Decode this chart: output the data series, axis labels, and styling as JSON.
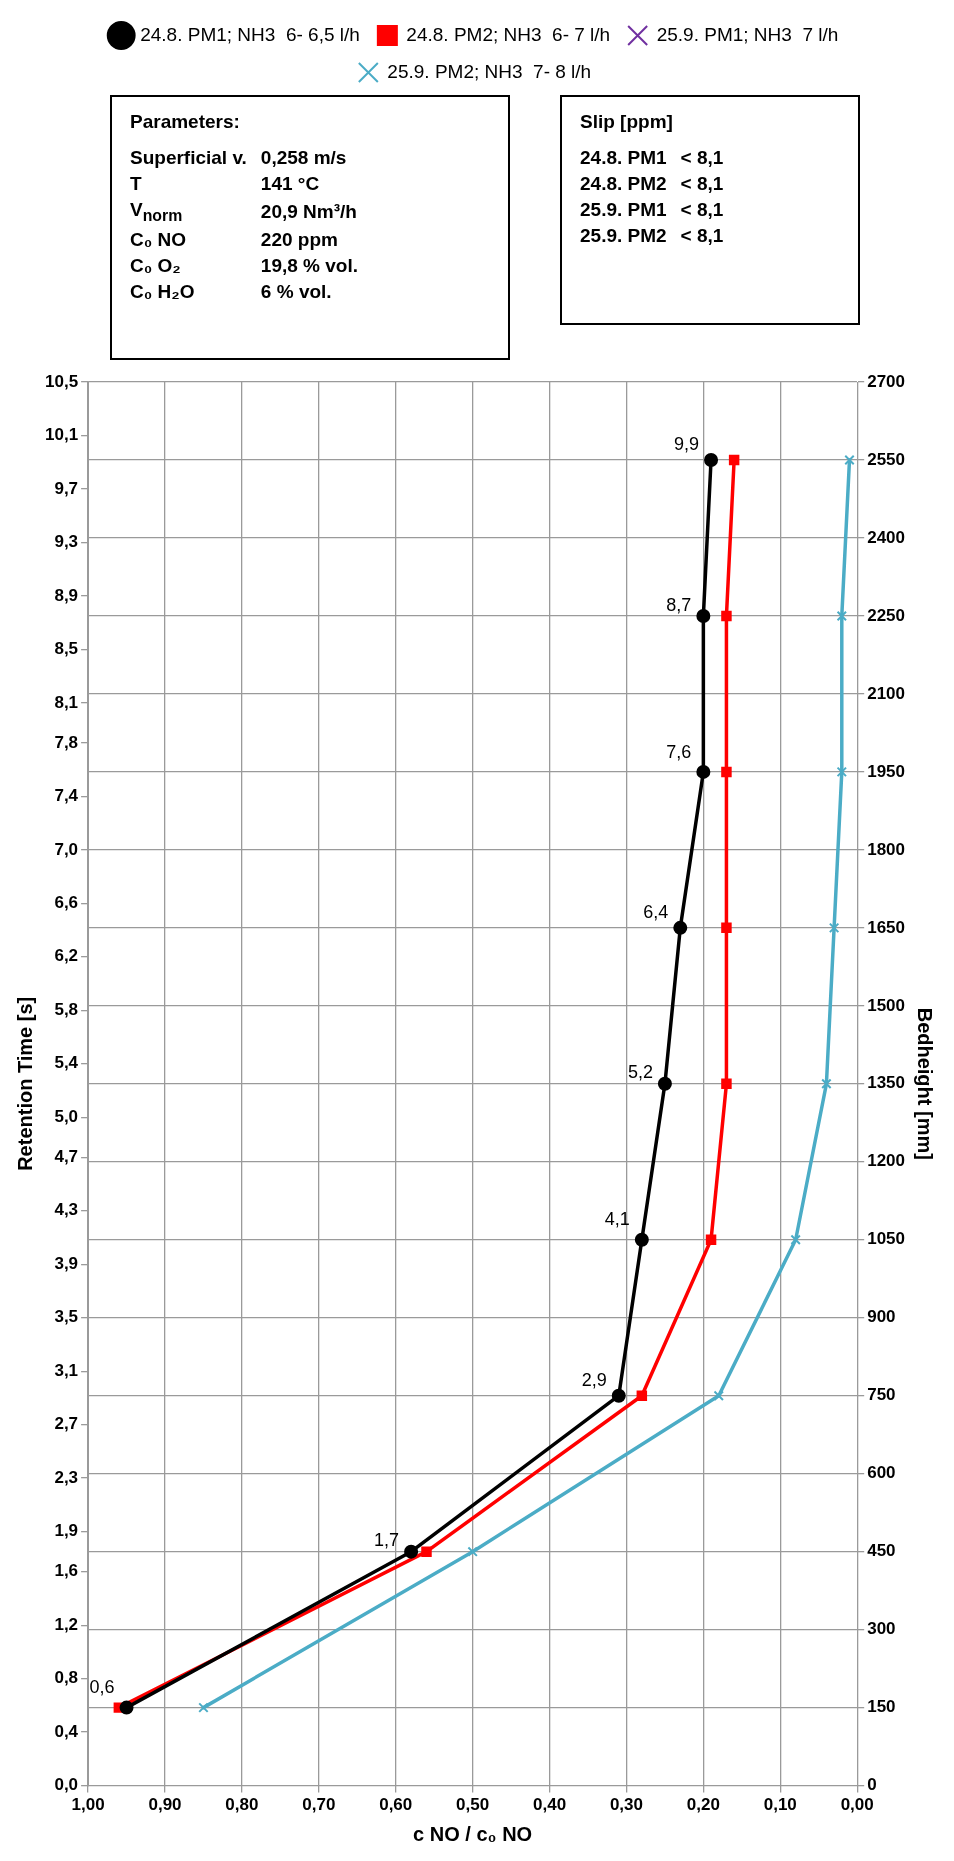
{
  "chart_data": {
    "type": "line",
    "ylabel": "Retention Time [s]",
    "y2label": "Bedheight [mm]",
    "xlabel": "c NO / c₀ NO",
    "series": [
      {
        "name": "24.8. PM1; NH3  6- 6,5 l/h",
        "color": "#000000",
        "marker": "circle",
        "axis": "y2",
        "x": [
          0.95,
          0.58,
          0.31,
          0.28,
          0.25,
          0.23,
          0.2,
          0.2,
          0.19
        ],
        "values": [
          150,
          450,
          750,
          1050,
          1350,
          1650,
          1950,
          2250,
          2550
        ]
      },
      {
        "name": "24.8. PM2; NH3  6- 7 l/h",
        "color": "#ff0000",
        "marker": "square",
        "axis": "y2",
        "x": [
          0.96,
          0.56,
          0.28,
          0.19,
          0.17,
          0.17,
          0.17,
          0.17,
          0.16
        ],
        "values": [
          150,
          450,
          750,
          1050,
          1350,
          1650,
          1950,
          2250,
          2550
        ]
      },
      {
        "name": "25.9. PM1; NH3  7 l/h",
        "color": "#7030a0",
        "marker": "cross",
        "axis": "y2",
        "x": [
          null,
          null,
          null,
          null,
          null,
          null,
          null,
          null,
          null
        ],
        "values": [
          null,
          null,
          null,
          null,
          null,
          null,
          null,
          null,
          null
        ]
      },
      {
        "name": "25.9. PM2; NH3  7- 8 l/h",
        "color": "#4bacc6",
        "marker": "cross",
        "axis": "y2",
        "x": [
          0.85,
          0.5,
          0.18,
          0.08,
          0.04,
          0.03,
          0.02,
          0.02,
          0.01
        ],
        "values": [
          150,
          450,
          750,
          1050,
          1350,
          1650,
          1950,
          2250,
          2550
        ]
      }
    ],
    "xlim": [
      1,
      0
    ],
    "xticks": [
      {
        "value": 1,
        "label": "1,00"
      },
      {
        "value": 0.9,
        "label": "0,90"
      },
      {
        "value": 0.8,
        "label": "0,80"
      },
      {
        "value": 0.7,
        "label": "0,70"
      },
      {
        "value": 0.6,
        "label": "0,60"
      },
      {
        "value": 0.5,
        "label": "0,50"
      },
      {
        "value": 0.4,
        "label": "0,40"
      },
      {
        "value": 0.3,
        "label": "0,30"
      },
      {
        "value": 0.2,
        "label": "0,20"
      },
      {
        "value": 0.1,
        "label": "0,10"
      },
      {
        "value": 0,
        "label": "0,00"
      }
    ],
    "y2lim": [
      0,
      2700
    ],
    "y2ticks": [
      0,
      150,
      300,
      450,
      600,
      750,
      900,
      1050,
      1200,
      1350,
      1500,
      1650,
      1800,
      1950,
      2100,
      2250,
      2400,
      2550,
      2700
    ],
    "ylim": [
      0,
      10.5
    ],
    "yticks": [
      {
        "value": 0,
        "label": "0,0"
      },
      {
        "value": 0.4,
        "label": "0,4"
      },
      {
        "value": 0.8,
        "label": "0,8"
      },
      {
        "value": 1.2,
        "label": "1,2"
      },
      {
        "value": 1.6,
        "label": "1,6"
      },
      {
        "value": 1.9,
        "label": "1,9"
      },
      {
        "value": 2.3,
        "label": "2,3"
      },
      {
        "value": 2.7,
        "label": "2,7"
      },
      {
        "value": 3.1,
        "label": "3,1"
      },
      {
        "value": 3.5,
        "label": "3,5"
      },
      {
        "value": 3.9,
        "label": "3,9"
      },
      {
        "value": 4.3,
        "label": "4,3"
      },
      {
        "value": 4.7,
        "label": "4,7"
      },
      {
        "value": 5,
        "label": "5,0"
      },
      {
        "value": 5.4,
        "label": "5,4"
      },
      {
        "value": 5.8,
        "label": "5,8"
      },
      {
        "value": 6.2,
        "label": "6,2"
      },
      {
        "value": 6.6,
        "label": "6,6"
      },
      {
        "value": 7,
        "label": "7,0"
      },
      {
        "value": 7.4,
        "label": "7,4"
      },
      {
        "value": 7.8,
        "label": "7,8"
      },
      {
        "value": 8.1,
        "label": "8,1"
      },
      {
        "value": 8.5,
        "label": "8,5"
      },
      {
        "value": 8.9,
        "label": "8,9"
      },
      {
        "value": 9.3,
        "label": "9,3"
      },
      {
        "value": 9.7,
        "label": "9,7"
      },
      {
        "value": 10.1,
        "label": "10,1"
      },
      {
        "value": 10.5,
        "label": "10,5"
      }
    ],
    "grid": true,
    "legend": "top",
    "annotations": [
      {
        "text": "0,6",
        "x": 0.95,
        "y": 0.6
      },
      {
        "text": "1,7",
        "x": 0.58,
        "y": 1.7
      },
      {
        "text": "2,9",
        "x": 0.31,
        "y": 2.9
      },
      {
        "text": "4,1",
        "x": 0.28,
        "y": 4.1
      },
      {
        "text": "5,2",
        "x": 0.25,
        "y": 5.2
      },
      {
        "text": "6,4",
        "x": 0.23,
        "y": 6.4
      },
      {
        "text": "7,6",
        "x": 0.2,
        "y": 7.6
      },
      {
        "text": "8,7",
        "x": 0.2,
        "y": 8.7
      },
      {
        "text": "9,9",
        "x": 0.19,
        "y": 9.9
      },
      "Parameters:\nSuperficial v.\t0,258 m/s\nT\t141 °C\nV$_{norm}$\t20,9 Nm³/h\nC₀ NO\t220 ppm\nC₀ O₂\t19,8 % vol.\nC₀ H₂O\t6 % vol.",
      "Slip [ppm]\n24.8. PM1\t< 8,1\n24.8. PM2\t< 8,1\n25.9. PM1\t< 8,1\n25.9. PM2\t< 8,1"
    ]
  }
}
